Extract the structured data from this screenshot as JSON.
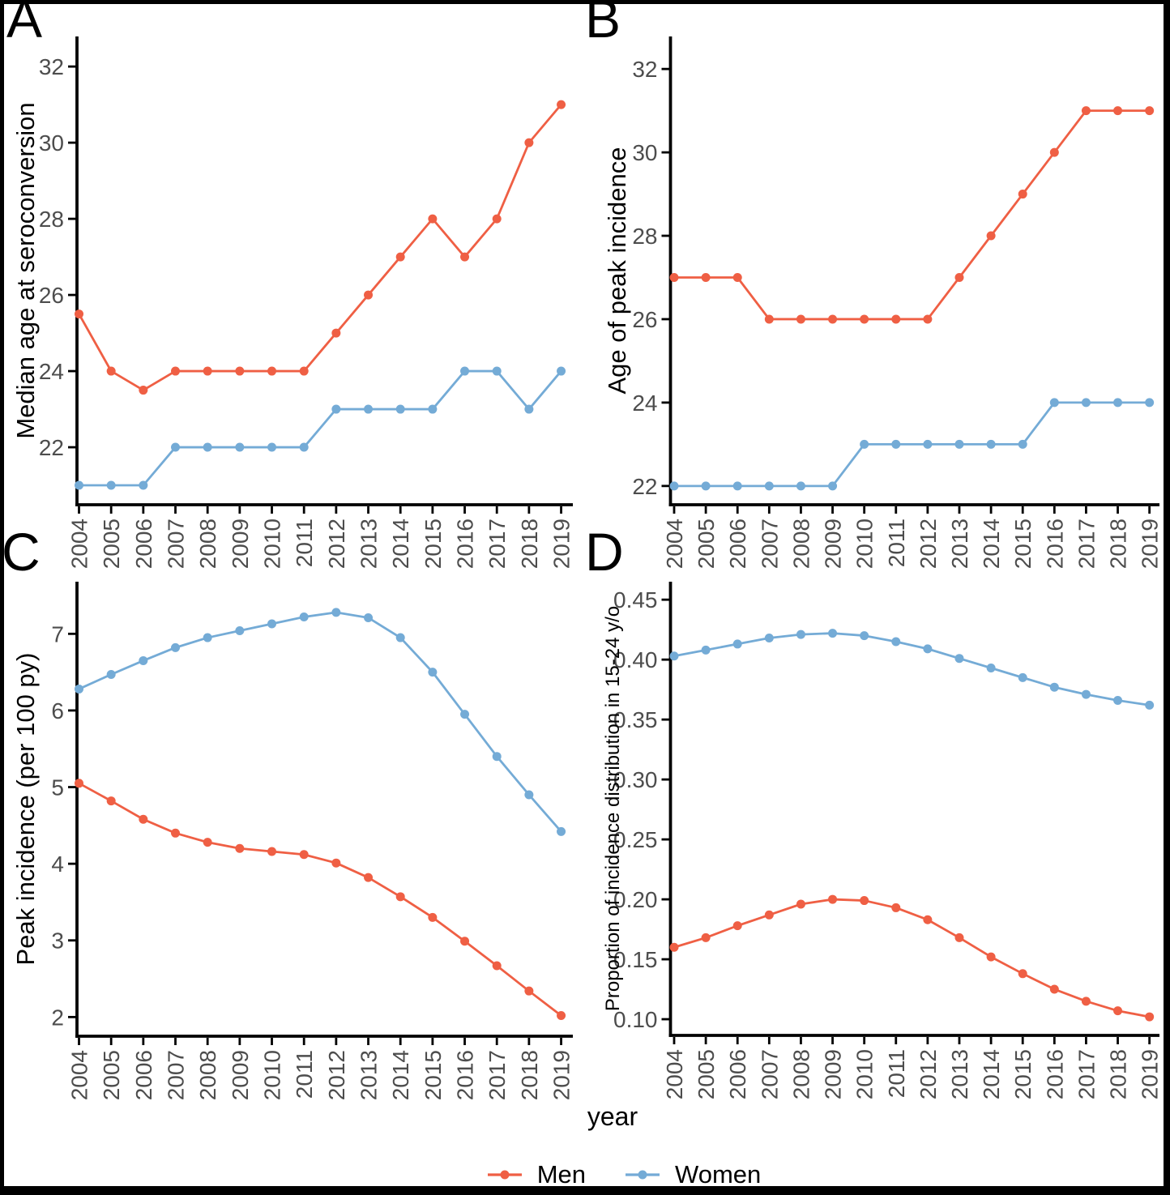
{
  "figure": {
    "background": "#ffffff"
  },
  "chart_data": {
    "type": "line",
    "grid": false,
    "xlabel": "year",
    "categories": [
      "2004",
      "2005",
      "2006",
      "2007",
      "2008",
      "2009",
      "2010",
      "2011",
      "2012",
      "2013",
      "2014",
      "2015",
      "2016",
      "2017",
      "2018",
      "2019"
    ],
    "legend": {
      "position": "bottom",
      "entries": [
        {
          "label": "Men",
          "color": "#EF5F44"
        },
        {
          "label": "Women",
          "color": "#74ABD6"
        }
      ]
    },
    "panels": [
      {
        "panel_label": "A",
        "ylabel": "Median age at seroconversion",
        "ylim": [
          20.49,
          32.79
        ],
        "yticks": {
          "values": [
            22,
            24,
            26,
            28,
            30,
            32
          ],
          "labels": [
            "22",
            "24",
            "26",
            "28",
            "30",
            "32"
          ]
        },
        "series": [
          {
            "name": "Men",
            "color": "#EF5F44",
            "values": [
              25.5,
              24,
              23.5,
              24,
              24,
              24,
              24,
              24,
              25,
              26,
              27,
              28,
              27,
              28,
              30,
              31
            ]
          },
          {
            "name": "Women",
            "color": "#74ABD6",
            "values": [
              21,
              21,
              21,
              22,
              22,
              22,
              22,
              22,
              23,
              23,
              23,
              23,
              24,
              24,
              23,
              24
            ]
          }
        ]
      },
      {
        "panel_label": "B",
        "ylabel": "Age of peak incidence",
        "ylim": [
          21.55,
          32.78
        ],
        "yticks": {
          "values": [
            22,
            24,
            26,
            28,
            30,
            32
          ],
          "labels": [
            "22",
            "24",
            "26",
            "28",
            "30",
            "32"
          ]
        },
        "series": [
          {
            "name": "Men",
            "color": "#EF5F44",
            "values": [
              27,
              27,
              27,
              26,
              26,
              26,
              26,
              26,
              26,
              27,
              28,
              29,
              30,
              31,
              31,
              31
            ]
          },
          {
            "name": "Women",
            "color": "#74ABD6",
            "values": [
              22,
              22,
              22,
              22,
              22,
              22,
              23,
              23,
              23,
              23,
              23,
              23,
              24,
              24,
              24,
              24
            ]
          }
        ]
      },
      {
        "panel_label": "C",
        "ylabel": "Peak incidence (per 100 py)",
        "ylim": [
          1.75,
          7.68
        ],
        "yticks": {
          "values": [
            2,
            3,
            4,
            5,
            6,
            7
          ],
          "labels": [
            "2",
            "3",
            "4",
            "5",
            "6",
            "7"
          ]
        },
        "series": [
          {
            "name": "Men",
            "color": "#EF5F44",
            "values": [
              5.05,
              4.82,
              4.58,
              4.4,
              4.28,
              4.2,
              4.16,
              4.12,
              4.01,
              3.82,
              3.57,
              3.3,
              2.99,
              2.67,
              2.34,
              2.02
            ]
          },
          {
            "name": "Women",
            "color": "#74ABD6",
            "values": [
              6.28,
              6.47,
              6.65,
              6.82,
              6.95,
              7.04,
              7.13,
              7.22,
              7.28,
              7.21,
              6.95,
              6.5,
              5.95,
              5.4,
              4.9,
              4.42
            ]
          }
        ]
      },
      {
        "panel_label": "D",
        "ylabel": "Proportion of incidence distribution in 15-24 y/o",
        "ylim": [
          0.0865,
          0.465
        ],
        "yticks": {
          "values": [
            0.1,
            0.15,
            0.2,
            0.25,
            0.3,
            0.35,
            0.4,
            0.45
          ],
          "labels": [
            "0.10",
            "0.15",
            "0.20",
            "0.25",
            "0.30",
            "0.35",
            "0.40",
            "0.45"
          ]
        },
        "series": [
          {
            "name": "Men",
            "color": "#EF5F44",
            "values": [
              0.16,
              0.168,
              0.178,
              0.187,
              0.196,
              0.2,
              0.199,
              0.193,
              0.183,
              0.168,
              0.152,
              0.138,
              0.125,
              0.115,
              0.107,
              0.102
            ]
          },
          {
            "name": "Women",
            "color": "#74ABD6",
            "values": [
              0.403,
              0.408,
              0.413,
              0.418,
              0.421,
              0.422,
              0.42,
              0.415,
              0.409,
              0.401,
              0.393,
              0.385,
              0.377,
              0.371,
              0.366,
              0.362
            ]
          }
        ]
      }
    ]
  }
}
